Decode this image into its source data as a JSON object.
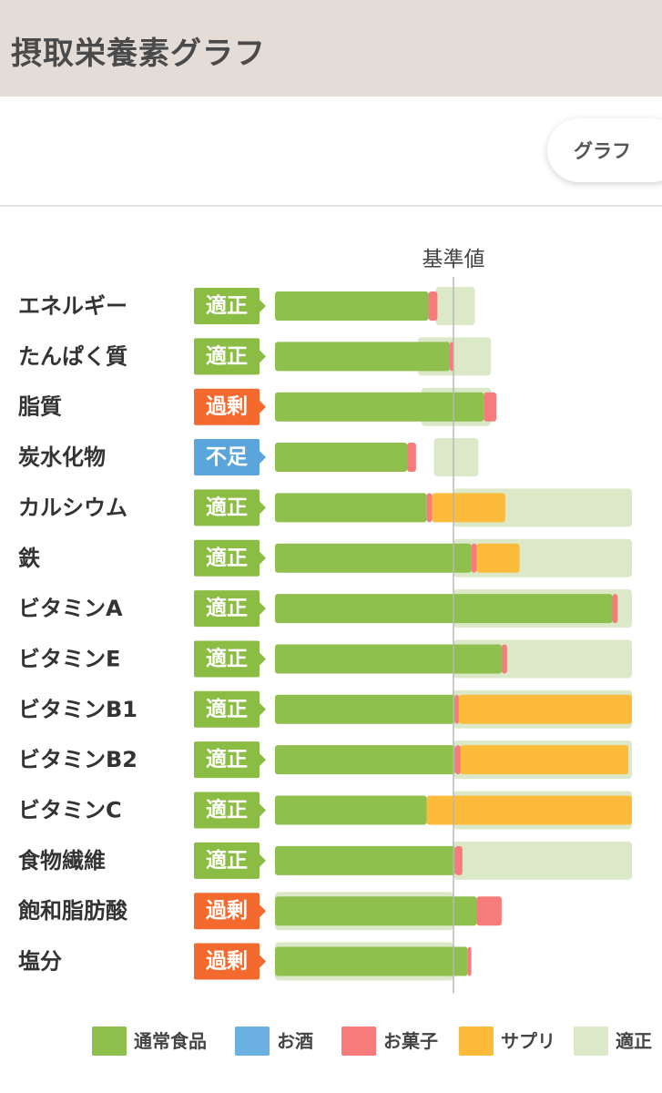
{
  "header": {
    "title": "摂取栄養素グラフ"
  },
  "tabs": {
    "graph_label": "グラフ"
  },
  "chart_data": {
    "type": "bar",
    "stacked": true,
    "orientation": "horizontal",
    "reference_label": "基準値",
    "reference_value": 100,
    "unit": "% of reference",
    "categories": [
      "エネルギー",
      "たんぱく質",
      "脂質",
      "炭水化物",
      "カルシウム",
      "鉄",
      "ビタミンA",
      "ビタミンE",
      "ビタミンB1",
      "ビタミンB2",
      "ビタミンC",
      "食物繊維",
      "飽和脂肪酸",
      "塩分"
    ],
    "status": [
      "適正",
      "適正",
      "過剰",
      "不足",
      "適正",
      "適正",
      "適正",
      "適正",
      "適正",
      "適正",
      "適正",
      "適正",
      "過剰",
      "過剰"
    ],
    "status_colors": {
      "適正": "#8bbc44",
      "過剰": "#f4692d",
      "不足": "#5ba5dd"
    },
    "series": [
      {
        "name": "通常食品",
        "color": "#8fbf4d",
        "values": [
          86,
          98,
          117,
          74,
          85,
          110,
          189,
          127,
          101,
          101,
          85,
          101,
          113,
          108
        ]
      },
      {
        "name": "お酒",
        "color": "#6ab0e0",
        "values": [
          0,
          0,
          0,
          0,
          0,
          0,
          0,
          0,
          0,
          0,
          0,
          0,
          0,
          0
        ]
      },
      {
        "name": "お菓子",
        "color": "#f77b7b",
        "values": [
          5,
          2,
          7,
          5,
          3,
          3,
          3,
          3,
          2,
          3,
          0,
          4,
          14,
          2
        ]
      },
      {
        "name": "サプリ",
        "color": "#fdbb3b",
        "values": [
          0,
          0,
          0,
          0,
          41,
          24,
          0,
          0,
          97,
          94,
          115,
          0,
          0,
          0
        ]
      },
      {
        "name": "適正範囲",
        "color": "#dbe9c9",
        "range": [
          [
            90,
            112
          ],
          [
            80,
            121
          ],
          [
            82,
            121
          ],
          [
            89,
            114
          ],
          [
            100,
            200
          ],
          [
            100,
            200
          ],
          [
            100,
            200
          ],
          [
            100,
            200
          ],
          [
            100,
            200
          ],
          [
            100,
            200
          ],
          [
            100,
            200
          ],
          [
            100,
            200
          ],
          [
            0,
            100
          ],
          [
            0,
            100
          ]
        ]
      }
    ],
    "legend": [
      "通常食品",
      "お酒",
      "お菓子",
      "サプリ",
      "適正"
    ],
    "legend_position": "bottom",
    "grid": false
  }
}
